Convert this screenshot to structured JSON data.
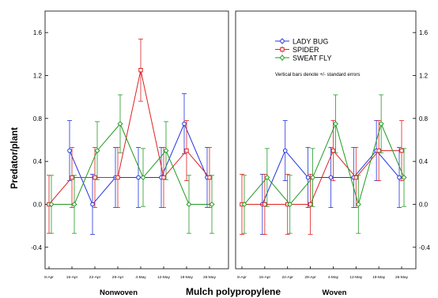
{
  "chart_data": {
    "type": "line",
    "ylabel": "Predator/plant",
    "xlabel": "Mulch polypropylene",
    "ylim": [
      -0.6,
      1.8
    ],
    "yticks": [
      "-0.4",
      "0.0",
      "0.4",
      "0.8",
      "1.2",
      "1.6"
    ],
    "grid": false,
    "legend_position": "top-right of right panel",
    "note": "Vertical bars denote +/- standard errors",
    "categories": [
      "8-Apr",
      "15-Apr",
      "22-Apr",
      "29-Apr",
      "4-May",
      "12-May",
      "19-May",
      "26-May"
    ],
    "series_styles": [
      {
        "name": "LADY BUG",
        "color": "#2233dd",
        "marker": "circle"
      },
      {
        "name": "SPIDER",
        "color": "#dd2222",
        "marker": "square"
      },
      {
        "name": "SWEAT FLY",
        "color": "#229922",
        "marker": "diamond"
      }
    ],
    "panels": [
      {
        "label": "Nonwoven",
        "series": [
          {
            "name": "LADY BUG",
            "values": [
              null,
              0.5,
              0.0,
              0.25,
              0.25,
              0.25,
              0.75,
              0.25
            ],
            "errors": [
              null,
              0.28,
              0.28,
              0.28,
              0.28,
              0.28,
              0.28,
              0.28
            ]
          },
          {
            "name": "SPIDER",
            "values": [
              0.0,
              0.25,
              0.25,
              0.25,
              1.25,
              0.25,
              0.5,
              0.25
            ],
            "errors": [
              0.27,
              0.28,
              0.28,
              0.28,
              0.29,
              0.28,
              0.28,
              0.28
            ]
          },
          {
            "name": "SWEAT FLY",
            "values": [
              0.0,
              0.0,
              0.5,
              0.75,
              0.25,
              0.5,
              0.0,
              0.0
            ],
            "errors": [
              0.27,
              0.27,
              0.27,
              0.27,
              0.27,
              0.27,
              0.27,
              0.27
            ]
          }
        ]
      },
      {
        "label": "Woven",
        "series": [
          {
            "name": "LADY BUG",
            "values": [
              null,
              0.0,
              0.5,
              0.25,
              0.25,
              0.25,
              0.5,
              0.25
            ],
            "errors": [
              null,
              0.28,
              0.28,
              0.28,
              0.28,
              0.28,
              0.28,
              0.28
            ]
          },
          {
            "name": "SPIDER",
            "values": [
              0.0,
              0.0,
              0.0,
              0.0,
              0.5,
              0.25,
              0.5,
              0.5
            ],
            "errors": [
              0.28,
              0.28,
              0.28,
              0.28,
              0.28,
              0.28,
              0.28,
              0.28
            ]
          },
          {
            "name": "SWEAT FLY",
            "values": [
              0.0,
              0.25,
              0.0,
              0.25,
              0.75,
              0.0,
              0.75,
              0.25
            ],
            "errors": [
              0.27,
              0.27,
              0.27,
              0.27,
              0.27,
              0.27,
              0.27,
              0.27
            ]
          }
        ]
      }
    ]
  }
}
